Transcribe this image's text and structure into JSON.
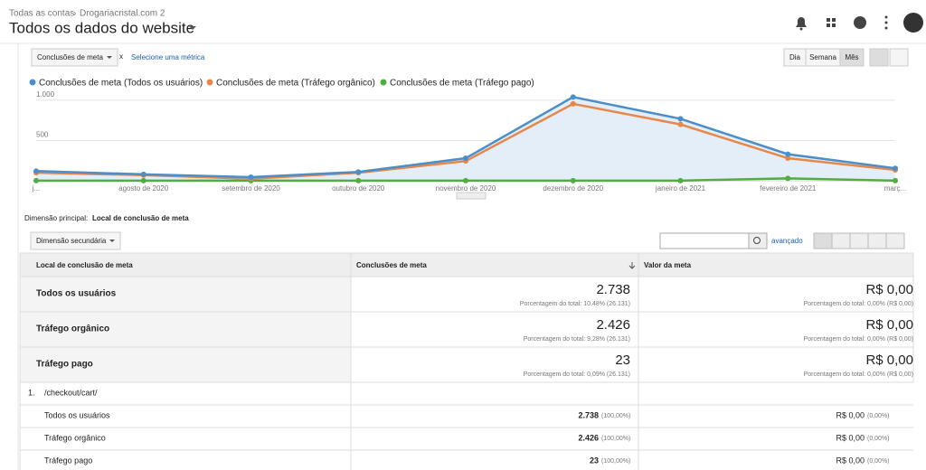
{
  "header": {
    "breadcrumb": [
      "Todas as contas",
      "Drogariacristal.com 2"
    ],
    "title": "Todos os dados do website"
  },
  "controls": {
    "metric": "Conclusões de meta",
    "compare": "x",
    "add_metric": "Selecione uma métrica",
    "periods": [
      "Dia",
      "Semana",
      "Mês"
    ]
  },
  "chart_data": {
    "type": "line",
    "categories": [
      "j...",
      "agosto de 2020",
      "setembro de 2020",
      "outubro de 2020",
      "novembro de 2020",
      "dezembro de 2020",
      "janeiro de 2021",
      "fevereiro de 2021",
      "març..."
    ],
    "series": [
      {
        "name": "Conclusões de meta (Todos os usuários)",
        "color": "#4b8ec8",
        "values": [
          120,
          80,
          45,
          110,
          280,
          1040,
          770,
          330,
          155
        ]
      },
      {
        "name": "Conclusões de meta (Tráfego orgânico)",
        "color": "#e8874a",
        "values": [
          100,
          70,
          25,
          100,
          245,
          955,
          700,
          280,
          135
        ]
      },
      {
        "name": "Conclusões de meta (Tráfego pago)",
        "color": "#4fae3f",
        "values": [
          2,
          2,
          2,
          2,
          2,
          2,
          2,
          30,
          2
        ]
      }
    ],
    "ylim": [
      0,
      1100
    ],
    "yticks": [
      {
        "value": 500,
        "label": "500"
      },
      {
        "value": 1000,
        "label": "1.000"
      }
    ],
    "grid": true,
    "area_first": true
  },
  "dimension": {
    "label": "Dimensão principal:",
    "value": "Local de conclusão de meta",
    "secondary": "Dimensão secundária",
    "advanced": "avançado"
  },
  "table": {
    "headers": [
      "Local de conclusão de meta",
      "Conclusões de meta",
      "Valor da meta"
    ],
    "summary": [
      {
        "name": "Todos os usuários",
        "value": "2.738",
        "share": "Porcentagem do total: 10,48% (26.131)",
        "meta": "R$ 0,00",
        "meta_share": "Porcentagem do total: 0,00% (R$ 0,00)"
      },
      {
        "name": "Tráfego orgânico",
        "value": "2.426",
        "share": "Porcentagem do total: 9,28% (26.131)",
        "meta": "R$ 0,00",
        "meta_share": "Porcentagem do total: 0,00% (R$ 0,00)"
      },
      {
        "name": "Tráfego pago",
        "value": "23",
        "share": "Porcentagem do total: 0,09% (26.131)",
        "meta": "R$ 0,00",
        "meta_share": "Porcentagem do total: 0,00% (R$ 0,00)"
      }
    ],
    "group": {
      "index": "1.",
      "name": "/checkout/cart/"
    },
    "rows": [
      {
        "name": "Todos os usuários",
        "value": "2.738",
        "pct": "(100,00%)",
        "meta": "R$ 0,00",
        "meta_pct": "(0,00%)"
      },
      {
        "name": "Tráfego orgânico",
        "value": "2.426",
        "pct": "(100,00%)",
        "meta": "R$ 0,00",
        "meta_pct": "(0,00%)"
      },
      {
        "name": "Tráfego pago",
        "value": "23",
        "pct": "(100,00%)",
        "meta": "R$ 0,00",
        "meta_pct": "(0,00%)"
      }
    ]
  }
}
